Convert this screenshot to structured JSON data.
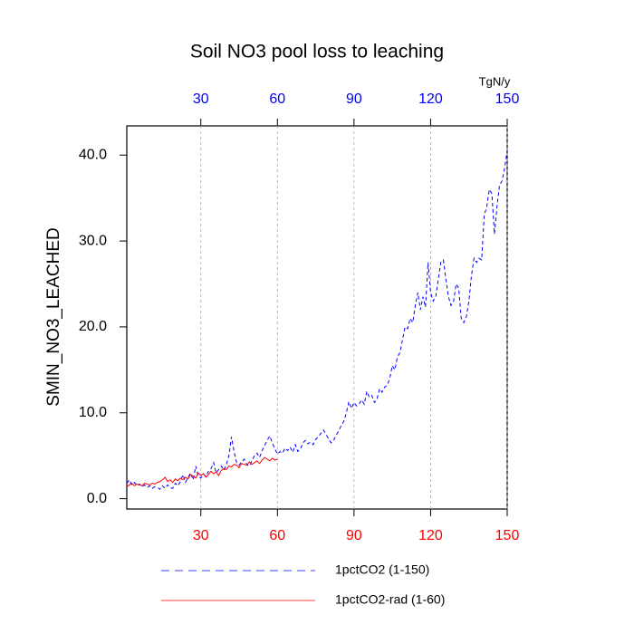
{
  "chart_data": {
    "type": "line",
    "title": "Soil NO3 pool loss to leaching",
    "ylabel": "SMIN_NO3_LEACHED",
    "x2label": "TgN/y",
    "x": [
      1,
      2,
      3,
      4,
      5,
      6,
      7,
      8,
      9,
      10,
      11,
      12,
      13,
      14,
      15,
      16,
      17,
      18,
      19,
      20,
      21,
      22,
      23,
      24,
      25,
      26,
      27,
      28,
      29,
      30,
      31,
      32,
      33,
      34,
      35,
      36,
      37,
      38,
      39,
      40,
      41,
      42,
      43,
      44,
      45,
      46,
      47,
      48,
      49,
      50,
      51,
      52,
      53,
      54,
      55,
      56,
      57,
      58,
      59,
      60,
      61,
      62,
      63,
      64,
      65,
      66,
      67,
      68,
      69,
      70,
      71,
      72,
      73,
      74,
      75,
      76,
      77,
      78,
      79,
      80,
      81,
      82,
      83,
      84,
      85,
      86,
      87,
      88,
      89,
      90,
      91,
      92,
      93,
      94,
      95,
      96,
      97,
      98,
      99,
      100,
      101,
      102,
      103,
      104,
      105,
      106,
      107,
      108,
      109,
      110,
      111,
      112,
      113,
      114,
      115,
      116,
      117,
      118,
      119,
      120,
      121,
      122,
      123,
      124,
      125,
      126,
      127,
      128,
      129,
      130,
      131,
      132,
      133,
      134,
      135,
      136,
      137,
      138,
      139,
      140,
      141,
      142,
      143,
      144,
      145,
      146,
      147,
      148,
      149,
      150
    ],
    "series": [
      {
        "name": "1pctCO2 (1-150)",
        "color": "#0000ff",
        "dash": "4,3",
        "values": [
          1.8,
          2.2,
          1.6,
          1.9,
          1.5,
          1.7,
          1.4,
          1.6,
          1.3,
          1.5,
          1.2,
          1.4,
          1.3,
          1.1,
          1.5,
          1.2,
          1.6,
          1.3,
          1.2,
          1.8,
          1.5,
          2.0,
          2.8,
          1.9,
          2.5,
          3.0,
          2.2,
          3.8,
          2.6,
          2.4,
          2.9,
          2.6,
          3.2,
          3.5,
          4.2,
          3.0,
          3.4,
          3.8,
          3.3,
          4.0,
          5.0,
          7.2,
          5.5,
          4.2,
          3.9,
          4.3,
          4.6,
          4.0,
          3.8,
          4.4,
          5.0,
          5.3,
          4.8,
          5.6,
          6.2,
          6.8,
          7.3,
          6.5,
          5.8,
          5.2,
          5.5,
          5.3,
          5.9,
          5.6,
          6.0,
          5.4,
          6.3,
          5.5,
          5.8,
          6.5,
          6.8,
          6.4,
          6.6,
          6.3,
          6.9,
          7.2,
          7.6,
          8.0,
          7.5,
          7.0,
          6.5,
          6.8,
          7.4,
          7.9,
          8.5,
          9.0,
          10.0,
          11.3,
          10.5,
          11.2,
          10.8,
          11.0,
          11.5,
          11.0,
          12.5,
          11.8,
          12.0,
          11.2,
          11.6,
          12.8,
          12.4,
          13.0,
          13.2,
          14.0,
          15.5,
          15.0,
          16.5,
          17.0,
          18.5,
          20.0,
          19.8,
          21.0,
          20.5,
          22.5,
          24.0,
          22.0,
          23.5,
          22.3,
          27.5,
          24.0,
          23.0,
          23.5,
          25.5,
          27.5,
          27.8,
          25.5,
          23.5,
          22.5,
          23.0,
          25.0,
          24.5,
          21.0,
          20.5,
          21.2,
          23.0,
          26.0,
          28.0,
          27.5,
          28.0,
          27.8,
          33.0,
          34.0,
          36.0,
          35.5,
          30.8,
          34.0,
          36.5,
          37.0,
          38.5,
          40.5
        ]
      },
      {
        "name": "1pctCO2-rad (1-60)",
        "color": "#ff0000",
        "dash": "none",
        "values": [
          1.4,
          1.6,
          1.8,
          1.5,
          1.7,
          1.6,
          1.5,
          1.8,
          1.7,
          1.6,
          1.8,
          1.7,
          1.9,
          2.0,
          2.2,
          2.5,
          2.0,
          2.2,
          1.9,
          2.3,
          2.1,
          2.4,
          2.2,
          2.5,
          2.3,
          2.8,
          2.6,
          2.4,
          3.0,
          2.7,
          2.9,
          2.5,
          2.8,
          3.2,
          2.9,
          3.1,
          2.7,
          3.3,
          3.5,
          3.4,
          3.8,
          3.7,
          4.0,
          3.9,
          3.6,
          4.1,
          4.0,
          3.9,
          4.3,
          4.0,
          4.2,
          4.4,
          4.1,
          4.5,
          4.8,
          4.6,
          4.4,
          4.7,
          4.5,
          4.6,
          null,
          null,
          null,
          null,
          null,
          null,
          null,
          null,
          null,
          null,
          null,
          null,
          null,
          null,
          null,
          null,
          null,
          null,
          null,
          null,
          null,
          null,
          null,
          null,
          null,
          null,
          null,
          null,
          null,
          null,
          null,
          null,
          null,
          null,
          null,
          null,
          null,
          null,
          null,
          null,
          null,
          null,
          null,
          null,
          null,
          null,
          null,
          null,
          null,
          null,
          null,
          null,
          null,
          null,
          null,
          null,
          null,
          null,
          null,
          null,
          null,
          null,
          null,
          null,
          null,
          null,
          null,
          null,
          null,
          null,
          null,
          null,
          null,
          null,
          null,
          null,
          null,
          null,
          null,
          null,
          null,
          null,
          null,
          null,
          null,
          null,
          null,
          null,
          null,
          null
        ]
      }
    ],
    "xlim": [
      1,
      150
    ],
    "ylim": [
      -1.2,
      43.4
    ],
    "xticks": [
      30,
      60,
      90,
      120,
      150
    ],
    "x2ticks": [
      30,
      60,
      90,
      120,
      150
    ],
    "yticks": [
      {
        "value": 0,
        "label": "0.0"
      },
      {
        "value": 10,
        "label": "10.0"
      },
      {
        "value": 20,
        "label": "20.0"
      },
      {
        "value": 30,
        "label": "30.0"
      },
      {
        "value": 40,
        "label": "40.0"
      }
    ],
    "xtick_color": "#ff0000",
    "x2tick_color": "#0000ff",
    "grid": "x"
  }
}
